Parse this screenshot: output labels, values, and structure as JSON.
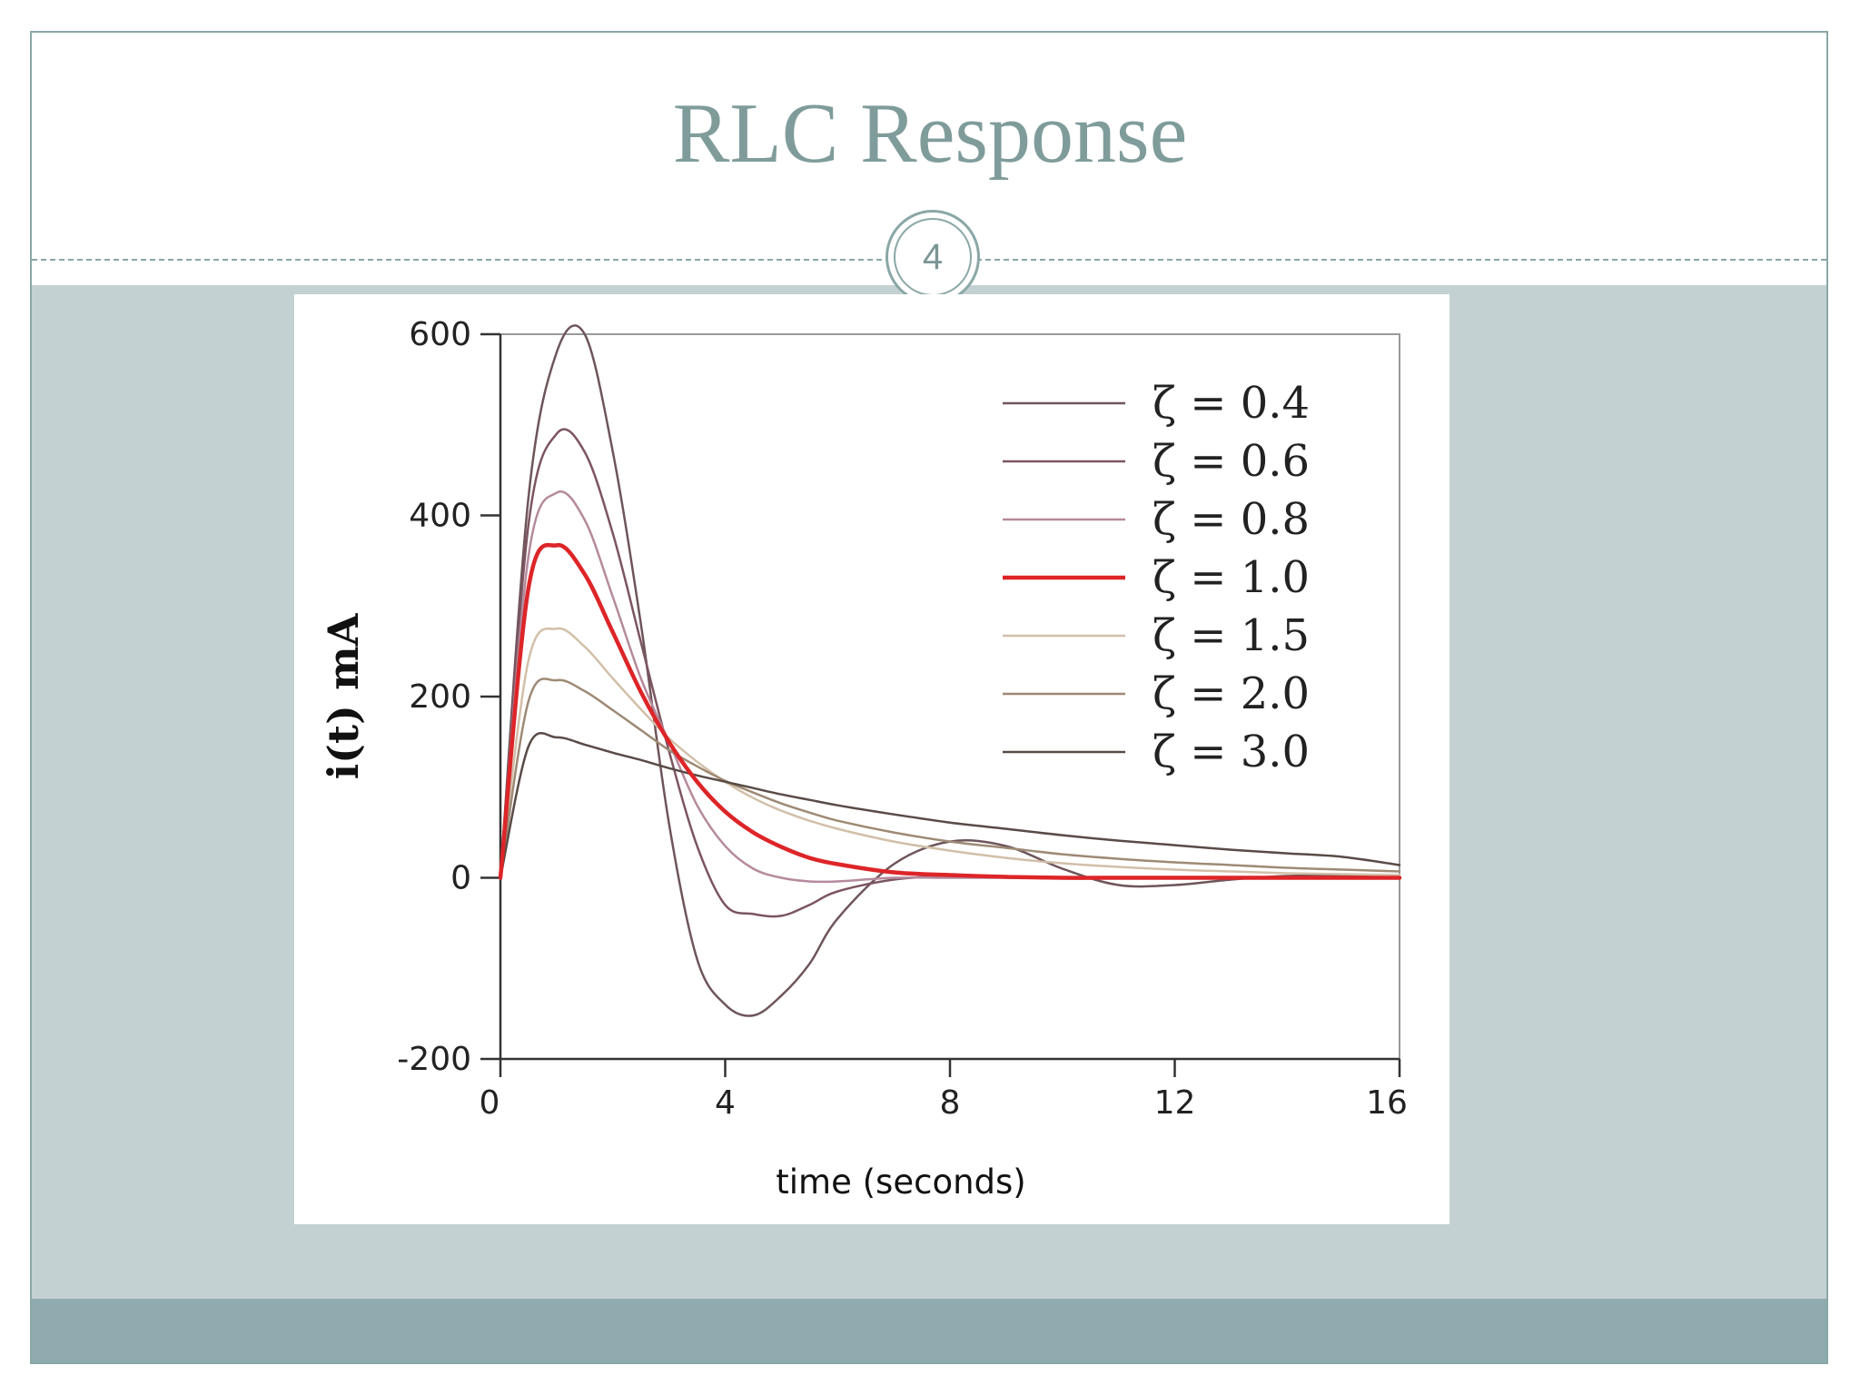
{
  "slide": {
    "title": "RLC Response",
    "slide_number": "4"
  },
  "colors": {
    "accent": "#7f9c9b",
    "content_bg": "#c4d1d2",
    "footer_bg": "#8fabaf"
  },
  "chart_data": {
    "type": "line",
    "title": "",
    "xlabel": "time (seconds)",
    "ylabel": "i(t) mA",
    "xlim": [
      0,
      16
    ],
    "ylim": [
      -200,
      600
    ],
    "xticks": [
      "0",
      "4",
      "8",
      "12",
      "16"
    ],
    "yticks": [
      "600",
      "400",
      "200",
      "0",
      "-200"
    ],
    "grid": false,
    "legend_position": "top-right",
    "x": [
      0,
      0.5,
      1,
      1.5,
      2,
      2.5,
      3,
      3.5,
      4,
      4.5,
      5,
      5.5,
      6,
      7,
      8,
      9,
      10,
      11,
      12,
      13,
      14,
      15,
      16
    ],
    "series": [
      {
        "name": "ζ = 0.4",
        "color": "#6e555a",
        "width": 2.5,
        "values": [
          0,
          420,
          580,
          600,
          470,
          280,
          60,
          -90,
          -140,
          -152,
          -130,
          -95,
          -45,
          15,
          40,
          35,
          10,
          -8,
          -8,
          -2,
          2,
          2,
          0
        ]
      },
      {
        "name": "ζ = 0.6",
        "color": "#7c5561",
        "width": 2.5,
        "values": [
          0,
          390,
          490,
          470,
          380,
          260,
          140,
          35,
          -30,
          -40,
          -42,
          -30,
          -15,
          -2,
          2,
          1,
          0,
          0,
          0,
          0,
          0,
          0,
          0
        ]
      },
      {
        "name": "ζ = 0.8",
        "color": "#b58a9c",
        "width": 2.5,
        "values": [
          0,
          355,
          425,
          395,
          310,
          220,
          150,
          80,
          35,
          10,
          0,
          -4,
          -4,
          0,
          0,
          0,
          0,
          0,
          0,
          0,
          0,
          0,
          0
        ]
      },
      {
        "name": "ζ = 1.0",
        "color": "#dd2528",
        "width": 4.5,
        "values": [
          0,
          320,
          367,
          335,
          271,
          205,
          150,
          106,
          73,
          50,
          34,
          22,
          15,
          6,
          3,
          1,
          0,
          0,
          0,
          0,
          0,
          0,
          0
        ]
      },
      {
        "name": "ζ = 1.5",
        "color": "#d2bfa8",
        "width": 2.5,
        "values": [
          0,
          240,
          275,
          255,
          220,
          186,
          154,
          128,
          106,
          88,
          74,
          63,
          54,
          40,
          30,
          22,
          16,
          12,
          9,
          7,
          5,
          4,
          3
        ]
      },
      {
        "name": "ζ = 2.0",
        "color": "#9e8a75",
        "width": 2.5,
        "values": [
          0,
          195,
          218,
          206,
          185,
          163,
          141,
          123,
          107,
          94,
          82,
          72,
          63,
          50,
          40,
          33,
          26,
          21,
          17,
          14,
          11,
          9,
          7
        ]
      },
      {
        "name": "ζ = 3.0",
        "color": "#594b46",
        "width": 2.5,
        "values": [
          0,
          145,
          155,
          147,
          138,
          130,
          121,
          113,
          106,
          99,
          92,
          86,
          80,
          70,
          61,
          54,
          47,
          41,
          36,
          31,
          27,
          23,
          14
        ]
      }
    ]
  }
}
